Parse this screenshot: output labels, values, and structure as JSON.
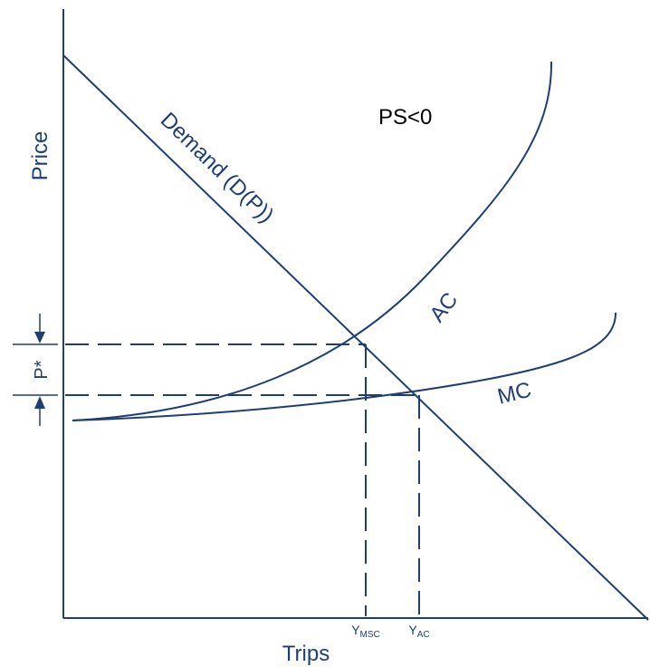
{
  "labels": {
    "y_axis": "Price",
    "x_axis": "Trips",
    "demand": "Demand (D(P))",
    "ac": "AC",
    "mc": "MC",
    "ps": "PS<0",
    "p_star": "P*",
    "y_msc_main": "Y",
    "y_msc_sub": "MSC",
    "y_ac_main": "Y",
    "y_ac_sub": "AC"
  },
  "colors": {
    "ink": "#1f3f73",
    "ps_text": "#000000",
    "background": "#ffffff"
  }
}
